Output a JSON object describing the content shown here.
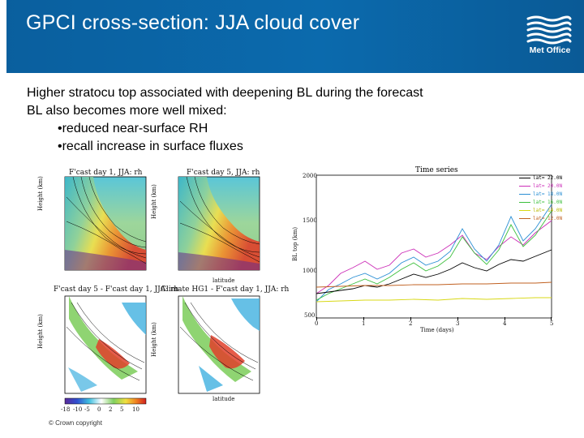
{
  "header": {
    "title": "GPCI cross-section: JJA cloud cover",
    "logo_text": "Met Office"
  },
  "bullets": {
    "line1": "Higher stratocu top associated with deepening BL during the forecast",
    "line2": "BL also becomes more well mixed:",
    "line3": "•reduced near-surface RH",
    "line4": "•recall increase in surface fluxes"
  },
  "panels": {
    "p1_title": "F'cast day 1, JJA: rh",
    "p2_title": "F'cast day 5, JJA: rh",
    "p3_title": "F'cast day 5 - F'cast day 1, JJA: rh",
    "p4_title": "Climate HG1 - F'cast day 1, JJA: rh",
    "ylabel": "Height (km)",
    "xlabel": "latitude",
    "colorbar_ticks": [
      "-18",
      "-10",
      "-5",
      "0",
      "2",
      "5",
      "10"
    ]
  },
  "timeseries": {
    "title": "Time series",
    "ylabel": "BL top (km)",
    "xlabel": "Time (days)",
    "yticks": [
      "2000",
      "1500",
      "1000",
      "500"
    ],
    "xticks": [
      "0",
      "1",
      "2",
      "3",
      "4",
      "5"
    ],
    "legend": [
      {
        "label": "lat= 22.0N",
        "color": "#000000"
      },
      {
        "label": "lat= 20.0N",
        "color": "#cc2fb8"
      },
      {
        "label": "lat= 18.0N",
        "color": "#2a8fd4"
      },
      {
        "label": "lat= 16.0N",
        "color": "#3bbf3b"
      },
      {
        "label": "lat= 14.0N",
        "color": "#d8d814"
      },
      {
        "label": "lat= 12.0N",
        "color": "#c06020"
      }
    ]
  },
  "footer": {
    "copyright": "© Crown copyright"
  }
}
